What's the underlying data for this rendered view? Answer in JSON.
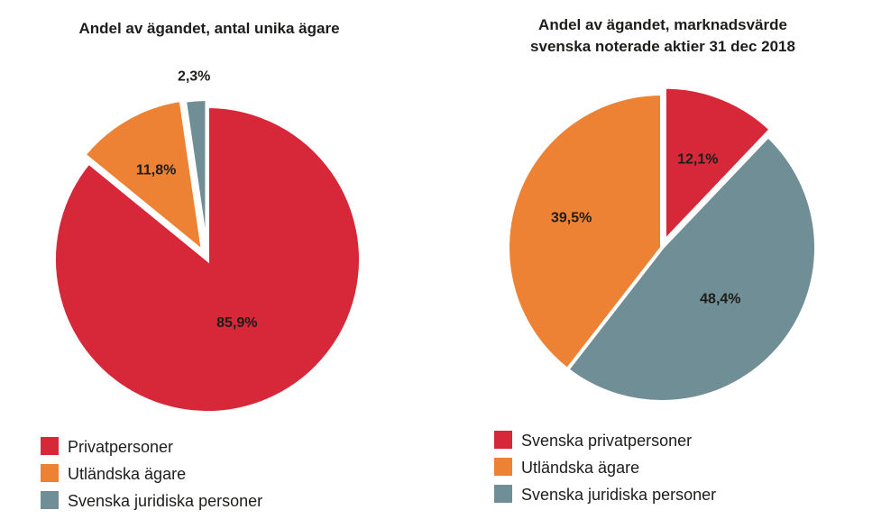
{
  "chart_data": [
    {
      "type": "pie",
      "title": "Andel av ägandet, antal unika ägare",
      "categories": [
        "Privatpersoner",
        "Utländska ägare",
        "Svenska juridiska personer"
      ],
      "values": [
        85.9,
        11.8,
        2.3
      ],
      "value_labels": [
        "85,9%",
        "11,8%",
        "2,3%"
      ],
      "colors": [
        "#d62839",
        "#ee8234",
        "#6f8e95"
      ],
      "legend_position": "bottom-left"
    },
    {
      "type": "pie",
      "title": "Andel av ägandet, marknadsvärde",
      "subtitle": "svenska noterade aktier 31 dec 2018",
      "categories": [
        "Svenska privatpersoner",
        "Svenska juridiska personer",
        "Utländska ägare"
      ],
      "values": [
        12.1,
        48.4,
        39.5
      ],
      "value_labels": [
        "12,1%",
        "48,4%",
        "39,5%"
      ],
      "colors": [
        "#d62839",
        "#6f8e95",
        "#ee8234"
      ],
      "legend": [
        {
          "label": "Svenska privatpersoner",
          "color": "#d62839"
        },
        {
          "label": "Utländska ägare",
          "color": "#ee8234"
        },
        {
          "label": "Svenska juridiska personer",
          "color": "#6f8e95"
        }
      ],
      "legend_position": "bottom-left"
    }
  ]
}
